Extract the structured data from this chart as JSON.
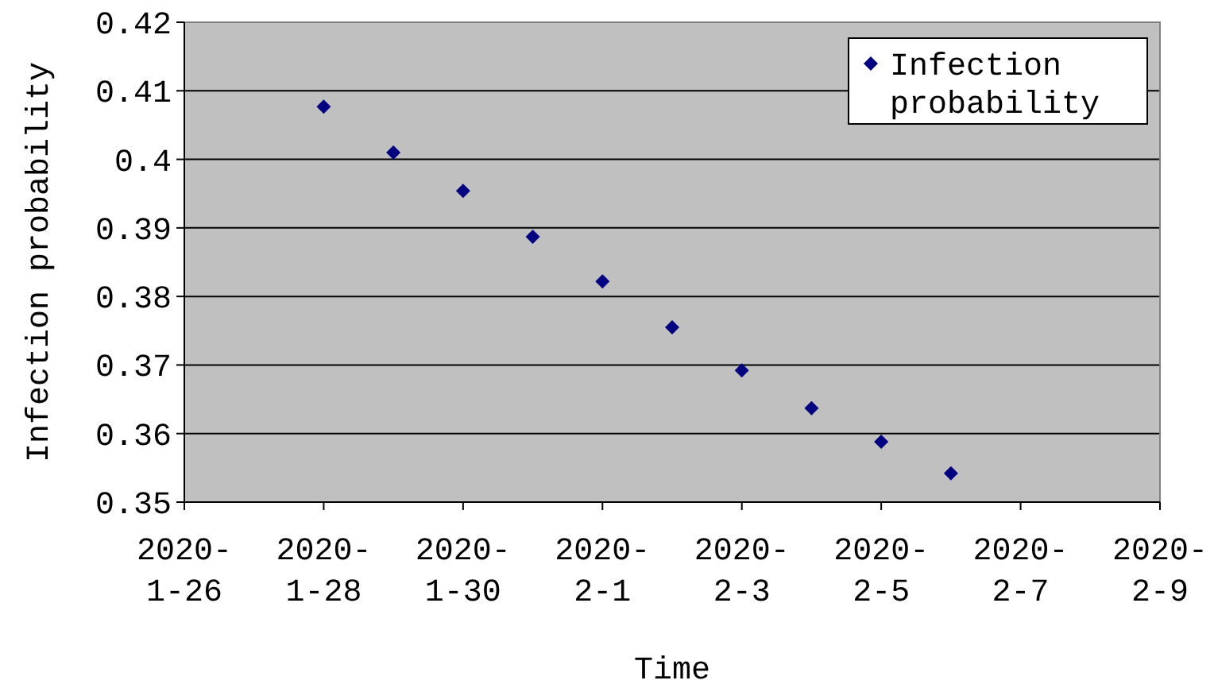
{
  "chart_data": {
    "type": "scatter",
    "xlabel": "Time",
    "ylabel": "Infection probability",
    "x": [
      "2020-01-28",
      "2020-01-29",
      "2020-01-30",
      "2020-01-31",
      "2020-02-01",
      "2020-02-02",
      "2020-02-03",
      "2020-02-04",
      "2020-02-05",
      "2020-02-06"
    ],
    "series": [
      {
        "name": "Infection probability",
        "color": "#000080",
        "values": [
          0.4077,
          0.401,
          0.3954,
          0.3887,
          0.3822,
          0.3755,
          0.3692,
          0.3637,
          0.3588,
          0.3542
        ]
      }
    ],
    "xlim": [
      "2020-01-26",
      "2020-02-09"
    ],
    "xticks": [
      {
        "value": "2020-01-26",
        "label": "2020-1-26"
      },
      {
        "value": "2020-01-28",
        "label": "2020-1-28"
      },
      {
        "value": "2020-01-30",
        "label": "2020-1-30"
      },
      {
        "value": "2020-02-01",
        "label": "2020-2-1"
      },
      {
        "value": "2020-02-03",
        "label": "2020-2-3"
      },
      {
        "value": "2020-02-05",
        "label": "2020-2-5"
      },
      {
        "value": "2020-02-07",
        "label": "2020-2-7"
      },
      {
        "value": "2020-02-09",
        "label": "2020-2-9"
      }
    ],
    "ylim": [
      0.35,
      0.42
    ],
    "yticks": [
      0.35,
      {
        "value": 0.36,
        "label": "0.36"
      },
      0.37,
      0.38,
      0.39,
      {
        "value": 0.4,
        "label": "0.4"
      },
      0.41,
      0.42
    ],
    "grid": "y",
    "legend": "top right",
    "marker": "diamond"
  }
}
